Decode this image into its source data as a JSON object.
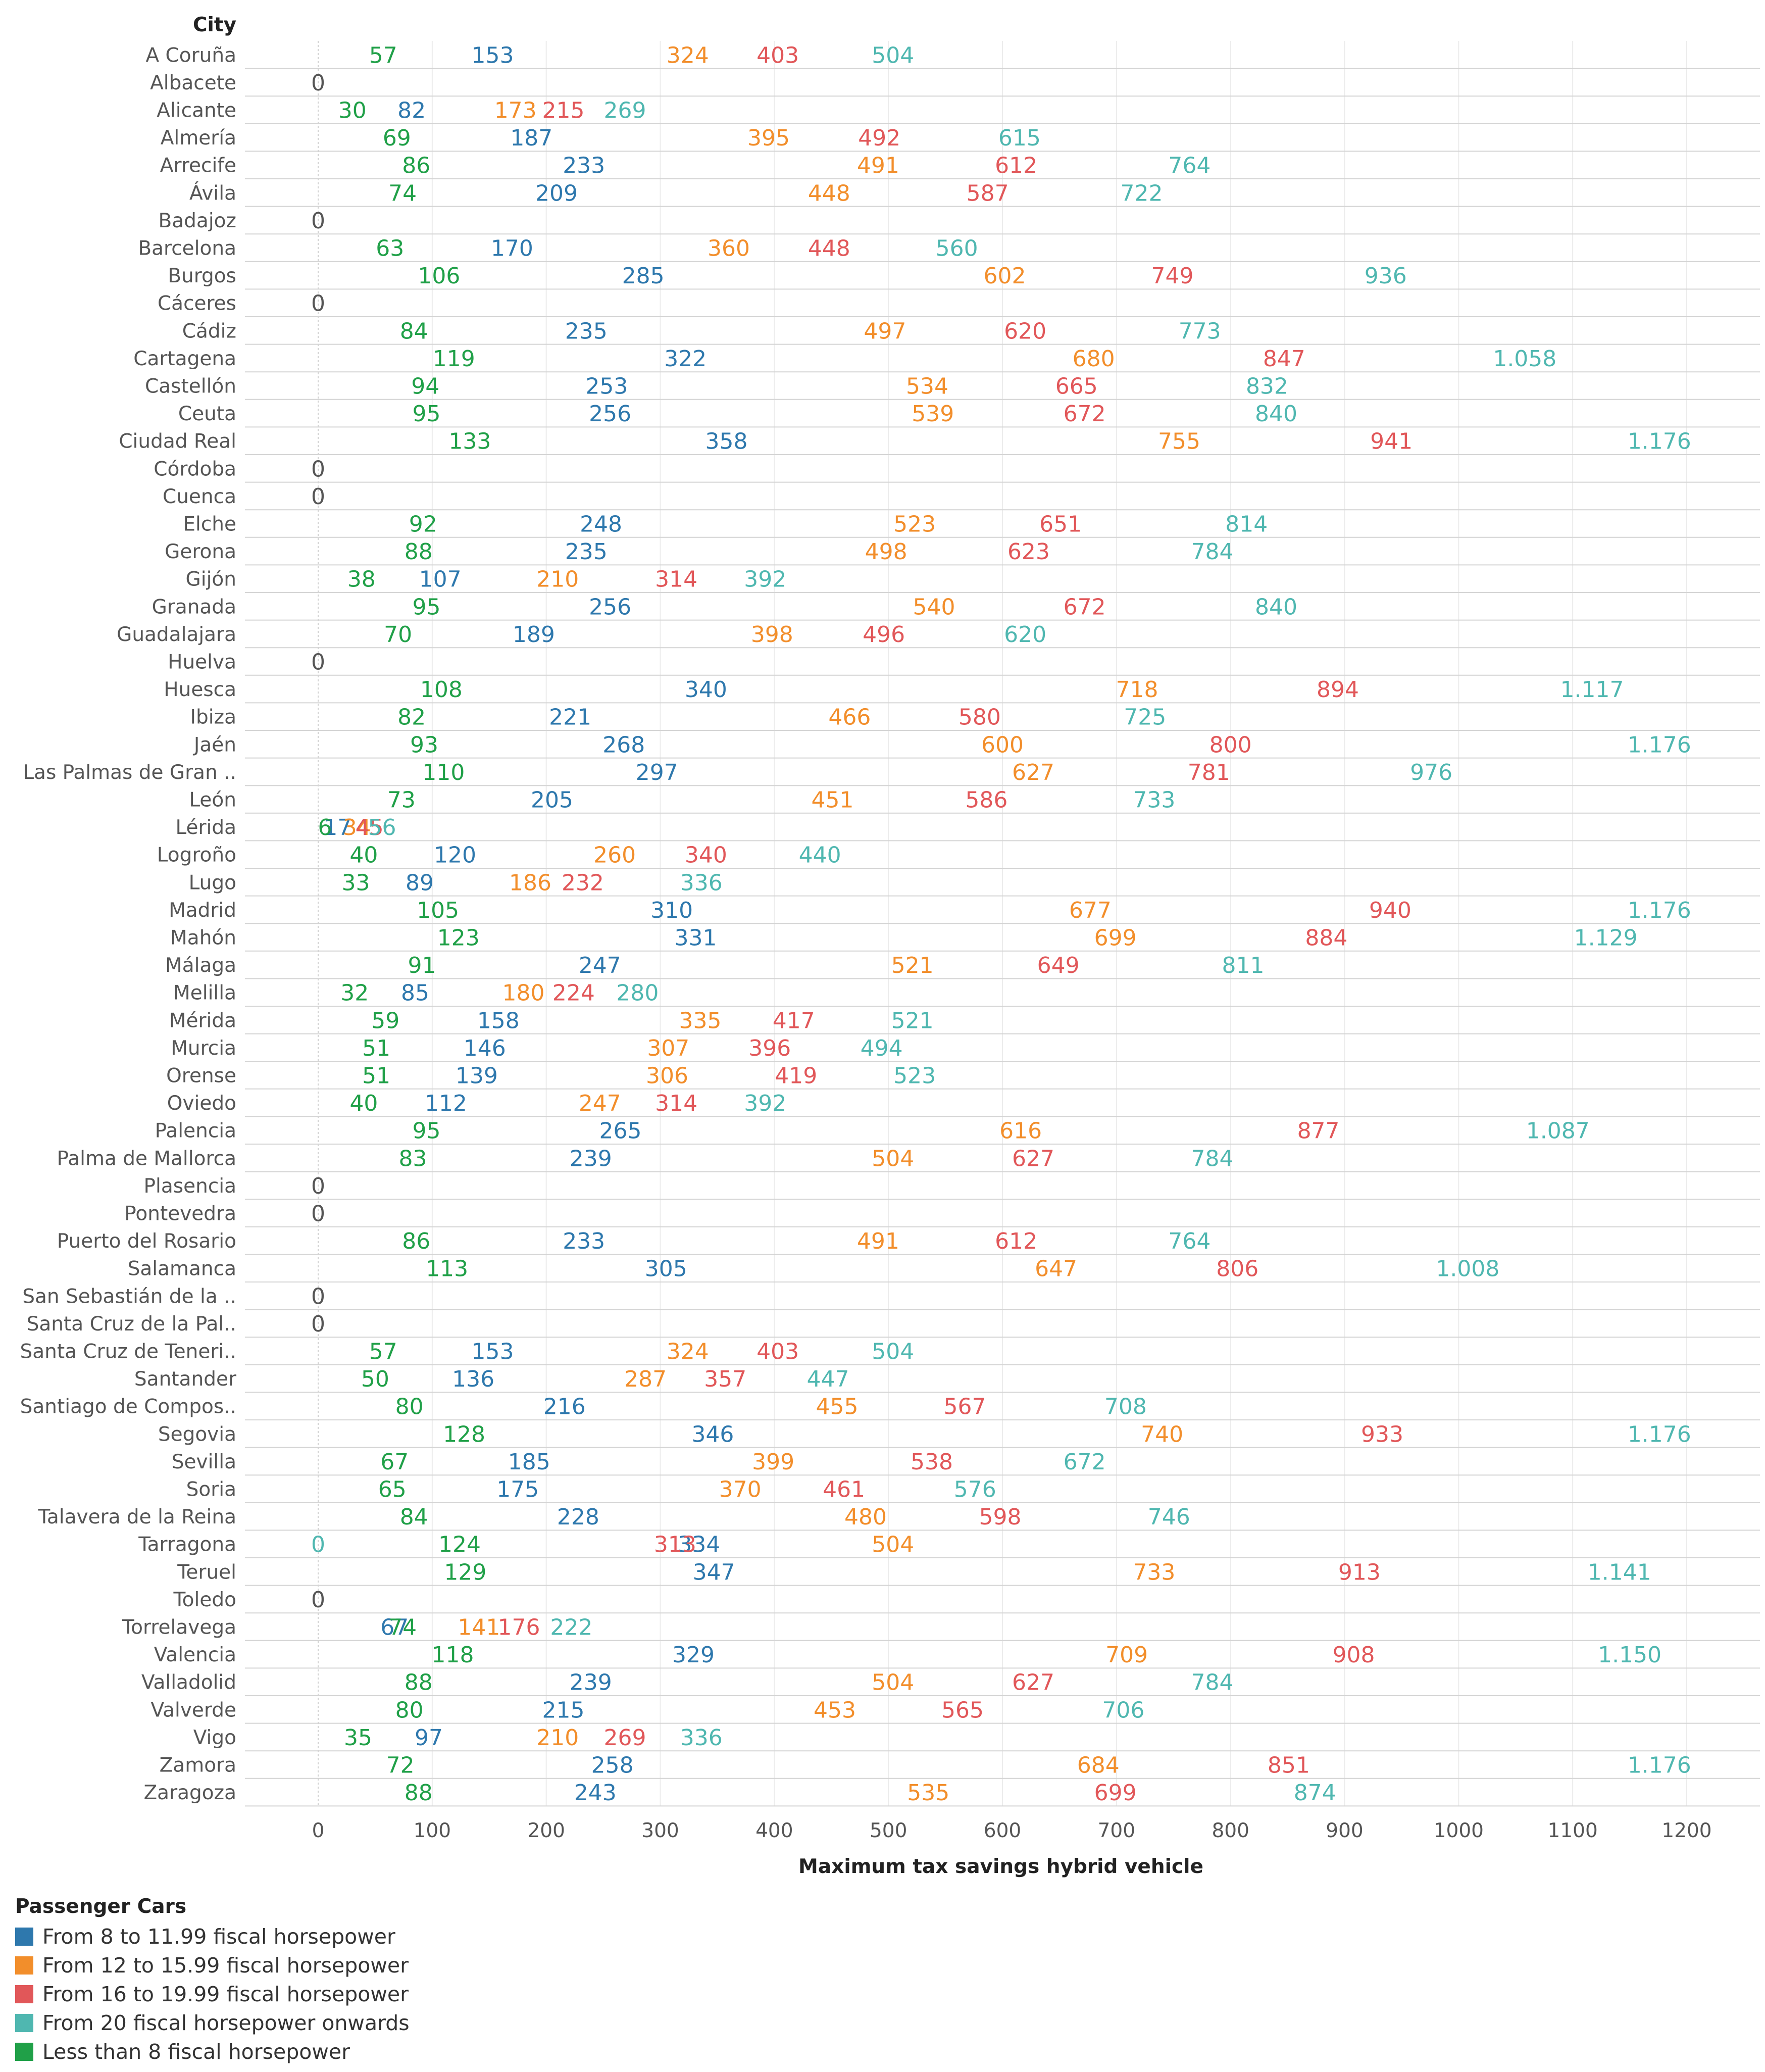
{
  "chart_data": {
    "type": "scatter",
    "row_header": "City",
    "xlabel": "Maximum tax savings hybrid vehicle",
    "xlim": [
      0,
      1200
    ],
    "x_ticks": [
      0,
      100,
      200,
      300,
      400,
      500,
      600,
      700,
      800,
      900,
      1000,
      1100,
      1200
    ],
    "legend_title": "Passenger Cars",
    "legend_placement": "bottom-left",
    "series_keys": [
      "s8",
      "s12",
      "s16",
      "s20",
      "slt8"
    ],
    "series": [
      {
        "key": "s8",
        "name": "From 8 to 11.99 fiscal horsepower",
        "color": "#2e78ad"
      },
      {
        "key": "s12",
        "name": "From 12 to 15.99 fiscal horsepower",
        "color": "#f28e2b"
      },
      {
        "key": "s16",
        "name": "From 16 to 19.99 fiscal horsepower",
        "color": "#e15759"
      },
      {
        "key": "s20",
        "name": "From 20 fiscal horsepower onwards",
        "color": "#4fb7b0"
      },
      {
        "key": "slt8",
        "name": "Less than 8 fiscal horsepower",
        "color": "#20a048"
      }
    ],
    "legend_order": [
      0,
      1,
      2,
      3,
      4
    ],
    "rows": [
      {
        "city": "A Coruña",
        "slt8": 57,
        "s8": 153,
        "s12": 324,
        "s16": 403,
        "s20": 504,
        "slt8_label": "57",
        "s8_label": "153",
        "s12_label": "324",
        "s16_label": "403",
        "s20_label": "504"
      },
      {
        "city": "Albacete",
        "zero": 0,
        "zero_label": "0"
      },
      {
        "city": "Alicante",
        "slt8": 30,
        "s8": 82,
        "s12": 173,
        "s16": 215,
        "s20": 269,
        "slt8_label": "30",
        "s8_label": "82",
        "s12_label": "173",
        "s16_label": "215",
        "s20_label": "269"
      },
      {
        "city": "Almería",
        "slt8": 69,
        "s8": 187,
        "s12": 395,
        "s16": 492,
        "s20": 615,
        "slt8_label": "69",
        "s8_label": "187",
        "s12_label": "395",
        "s16_label": "492",
        "s20_label": "615"
      },
      {
        "city": "Arrecife",
        "slt8": 86,
        "s8": 233,
        "s12": 491,
        "s16": 612,
        "s20": 764,
        "slt8_label": "86",
        "s8_label": "233",
        "s12_label": "491",
        "s16_label": "612",
        "s20_label": "764"
      },
      {
        "city": "Ávila",
        "slt8": 74,
        "s8": 209,
        "s12": 448,
        "s16": 587,
        "s20": 722,
        "slt8_label": "74",
        "s8_label": "209",
        "s12_label": "448",
        "s16_label": "587",
        "s20_label": "722"
      },
      {
        "city": "Badajoz",
        "zero": 0,
        "zero_label": "0"
      },
      {
        "city": "Barcelona",
        "slt8": 63,
        "s8": 170,
        "s12": 360,
        "s16": 448,
        "s20": 560,
        "slt8_label": "63",
        "s8_label": "170",
        "s12_label": "360",
        "s16_label": "448",
        "s20_label": "560"
      },
      {
        "city": "Burgos",
        "slt8": 106,
        "s8": 285,
        "s12": 602,
        "s16": 749,
        "s20": 936,
        "slt8_label": "106",
        "s8_label": "285",
        "s12_label": "602",
        "s16_label": "749",
        "s20_label": "936"
      },
      {
        "city": "Cáceres",
        "zero": 0,
        "zero_label": "0"
      },
      {
        "city": "Cádiz",
        "slt8": 84,
        "s8": 235,
        "s12": 497,
        "s16": 620,
        "s20": 773,
        "slt8_label": "84",
        "s8_label": "235",
        "s12_label": "497",
        "s16_label": "620",
        "s20_label": "773"
      },
      {
        "city": "Cartagena",
        "slt8": 119,
        "s8": 322,
        "s12": 680,
        "s16": 847,
        "s20": 1058,
        "slt8_label": "119",
        "s8_label": "322",
        "s12_label": "680",
        "s16_label": "847",
        "s20_label": "1.058"
      },
      {
        "city": "Castellón",
        "slt8": 94,
        "s8": 253,
        "s12": 534,
        "s16": 665,
        "s20": 832,
        "slt8_label": "94",
        "s8_label": "253",
        "s12_label": "534",
        "s16_label": "665",
        "s20_label": "832"
      },
      {
        "city": "Ceuta",
        "slt8": 95,
        "s8": 256,
        "s12": 539,
        "s16": 672,
        "s20": 840,
        "slt8_label": "95",
        "s8_label": "256",
        "s12_label": "539",
        "s16_label": "672",
        "s20_label": "840"
      },
      {
        "city": "Ciudad Real",
        "slt8": 133,
        "s8": 358,
        "s12": 755,
        "s16": 941,
        "s20": 1176,
        "slt8_label": "133",
        "s8_label": "358",
        "s12_label": "755",
        "s16_label": "941",
        "s20_label": "1.176"
      },
      {
        "city": "Córdoba",
        "zero": 0,
        "zero_label": "0"
      },
      {
        "city": "Cuenca",
        "zero": 0,
        "zero_label": "0"
      },
      {
        "city": "Elche",
        "slt8": 92,
        "s8": 248,
        "s12": 523,
        "s16": 651,
        "s20": 814,
        "slt8_label": "92",
        "s8_label": "248",
        "s12_label": "523",
        "s16_label": "651",
        "s20_label": "814"
      },
      {
        "city": "Gerona",
        "slt8": 88,
        "s8": 235,
        "s12": 498,
        "s16": 623,
        "s20": 784,
        "slt8_label": "88",
        "s8_label": "235",
        "s12_label": "498",
        "s16_label": "623",
        "s20_label": "784"
      },
      {
        "city": "Gijón",
        "slt8": 38,
        "s8": 107,
        "s12": 210,
        "s16": 314,
        "s20": 392,
        "slt8_label": "38",
        "s8_label": "107",
        "s12_label": "210",
        "s16_label": "314",
        "s20_label": "392"
      },
      {
        "city": "Granada",
        "slt8": 95,
        "s8": 256,
        "s12": 540,
        "s16": 672,
        "s20": 840,
        "slt8_label": "95",
        "s8_label": "256",
        "s12_label": "540",
        "s16_label": "672",
        "s20_label": "840"
      },
      {
        "city": "Guadalajara",
        "slt8": 70,
        "s8": 189,
        "s12": 398,
        "s16": 496,
        "s20": 620,
        "slt8_label": "70",
        "s8_label": "189",
        "s12_label": "398",
        "s16_label": "496",
        "s20_label": "620"
      },
      {
        "city": "Huelva",
        "zero": 0,
        "zero_label": "0"
      },
      {
        "city": "Huesca",
        "slt8": 108,
        "s8": 340,
        "s12": 718,
        "s16": 894,
        "s20": 1117,
        "slt8_label": "108",
        "s8_label": "340",
        "s12_label": "718",
        "s16_label": "894",
        "s20_label": "1.117"
      },
      {
        "city": "Ibiza",
        "slt8": 82,
        "s8": 221,
        "s12": 466,
        "s16": 580,
        "s20": 725,
        "slt8_label": "82",
        "s8_label": "221",
        "s12_label": "466",
        "s16_label": "580",
        "s20_label": "725"
      },
      {
        "city": "Jaén",
        "slt8": 93,
        "s8": 268,
        "s12": 600,
        "s16": 800,
        "s20": 1176,
        "slt8_label": "93",
        "s8_label": "268",
        "s12_label": "600",
        "s16_label": "800",
        "s20_label": "1.176"
      },
      {
        "city": "Las Palmas de Gran ..",
        "slt8": 110,
        "s8": 297,
        "s12": 627,
        "s16": 781,
        "s20": 976,
        "slt8_label": "110",
        "s8_label": "297",
        "s12_label": "627",
        "s16_label": "781",
        "s20_label": "976"
      },
      {
        "city": "León",
        "slt8": 73,
        "s8": 205,
        "s12": 451,
        "s16": 586,
        "s20": 733,
        "slt8_label": "73",
        "s8_label": "205",
        "s12_label": "451",
        "s16_label": "586",
        "s20_label": "733"
      },
      {
        "city": "Lérida",
        "slt8": 6,
        "s8": 17,
        "s12": 34,
        "s16": 45,
        "s20": 56,
        "slt8_label": "6",
        "s8_label": "17",
        "s12_label": "34",
        "s16_label": "45",
        "s20_label": "56"
      },
      {
        "city": "Logroño",
        "slt8": 40,
        "s8": 120,
        "s12": 260,
        "s16": 340,
        "s20": 440,
        "slt8_label": "40",
        "s8_label": "120",
        "s12_label": "260",
        "s16_label": "340",
        "s20_label": "440"
      },
      {
        "city": "Lugo",
        "slt8": 33,
        "s8": 89,
        "s12": 186,
        "s16": 232,
        "s20": 336,
        "slt8_label": "33",
        "s8_label": "89",
        "s12_label": "186",
        "s16_label": "232",
        "s20_label": "336"
      },
      {
        "city": "Madrid",
        "slt8": 105,
        "s8": 310,
        "s12": 677,
        "s16": 940,
        "s20": 1176,
        "slt8_label": "105",
        "s8_label": "310",
        "s12_label": "677",
        "s16_label": "940",
        "s20_label": "1.176"
      },
      {
        "city": "Mahón",
        "slt8": 123,
        "s8": 331,
        "s12": 699,
        "s16": 884,
        "s20": 1129,
        "slt8_label": "123",
        "s8_label": "331",
        "s12_label": "699",
        "s16_label": "884",
        "s20_label": "1.129"
      },
      {
        "city": "Málaga",
        "slt8": 91,
        "s8": 247,
        "s12": 521,
        "s16": 649,
        "s20": 811,
        "slt8_label": "91",
        "s8_label": "247",
        "s12_label": "521",
        "s16_label": "649",
        "s20_label": "811"
      },
      {
        "city": "Melilla",
        "slt8": 32,
        "s8": 85,
        "s12": 180,
        "s16": 224,
        "s20": 280,
        "slt8_label": "32",
        "s8_label": "85",
        "s12_label": "180",
        "s16_label": "224",
        "s20_label": "280"
      },
      {
        "city": "Mérida",
        "slt8": 59,
        "s8": 158,
        "s12": 335,
        "s16": 417,
        "s20": 521,
        "slt8_label": "59",
        "s8_label": "158",
        "s12_label": "335",
        "s16_label": "417",
        "s20_label": "521"
      },
      {
        "city": "Murcia",
        "slt8": 51,
        "s8": 146,
        "s12": 307,
        "s16": 396,
        "s20": 494,
        "slt8_label": "51",
        "s8_label": "146",
        "s12_label": "307",
        "s16_label": "396",
        "s20_label": "494"
      },
      {
        "city": "Orense",
        "slt8": 51,
        "s8": 139,
        "s12": 306,
        "s16": 419,
        "s20": 523,
        "slt8_label": "51",
        "s8_label": "139",
        "s12_label": "306",
        "s16_label": "419",
        "s20_label": "523"
      },
      {
        "city": "Oviedo",
        "slt8": 40,
        "s8": 112,
        "s12": 247,
        "s16": 314,
        "s20": 392,
        "slt8_label": "40",
        "s8_label": "112",
        "s12_label": "247",
        "s16_label": "314",
        "s20_label": "392"
      },
      {
        "city": "Palencia",
        "slt8": 95,
        "s8": 265,
        "s12": 616,
        "s16": 877,
        "s20": 1087,
        "slt8_label": "95",
        "s8_label": "265",
        "s12_label": "616",
        "s16_label": "877",
        "s20_label": "1.087"
      },
      {
        "city": "Palma de Mallorca",
        "slt8": 83,
        "s8": 239,
        "s12": 504,
        "s16": 627,
        "s20": 784,
        "slt8_label": "83",
        "s8_label": "239",
        "s12_label": "504",
        "s16_label": "627",
        "s20_label": "784"
      },
      {
        "city": "Plasencia",
        "zero": 0,
        "zero_label": "0"
      },
      {
        "city": "Pontevedra",
        "zero": 0,
        "zero_label": "0"
      },
      {
        "city": "Puerto del Rosario",
        "slt8": 86,
        "s8": 233,
        "s12": 491,
        "s16": 612,
        "s20": 764,
        "slt8_label": "86",
        "s8_label": "233",
        "s12_label": "491",
        "s16_label": "612",
        "s20_label": "764"
      },
      {
        "city": "Salamanca",
        "slt8": 113,
        "s8": 305,
        "s12": 647,
        "s16": 806,
        "s20": 1008,
        "slt8_label": "113",
        "s8_label": "305",
        "s12_label": "647",
        "s16_label": "806",
        "s20_label": "1.008"
      },
      {
        "city": "San Sebastián de la ..",
        "zero": 0,
        "zero_label": "0"
      },
      {
        "city": "Santa Cruz de la Pal..",
        "zero": 0,
        "zero_label": "0"
      },
      {
        "city": "Santa Cruz de Teneri..",
        "slt8": 57,
        "s8": 153,
        "s12": 324,
        "s16": 403,
        "s20": 504,
        "slt8_label": "57",
        "s8_label": "153",
        "s12_label": "324",
        "s16_label": "403",
        "s20_label": "504"
      },
      {
        "city": "Santander",
        "slt8": 50,
        "s8": 136,
        "s12": 287,
        "s16": 357,
        "s20": 447,
        "slt8_label": "50",
        "s8_label": "136",
        "s12_label": "287",
        "s16_label": "357",
        "s20_label": "447"
      },
      {
        "city": "Santiago de Compos..",
        "slt8": 80,
        "s8": 216,
        "s12": 455,
        "s16": 567,
        "s20": 708,
        "slt8_label": "80",
        "s8_label": "216",
        "s12_label": "455",
        "s16_label": "567",
        "s20_label": "708"
      },
      {
        "city": "Segovia",
        "slt8": 128,
        "s8": 346,
        "s12": 740,
        "s16": 933,
        "s20": 1176,
        "slt8_label": "128",
        "s8_label": "346",
        "s12_label": "740",
        "s16_label": "933",
        "s20_label": "1.176"
      },
      {
        "city": "Sevilla",
        "slt8": 67,
        "s8": 185,
        "s12": 399,
        "s16": 538,
        "s20": 672,
        "slt8_label": "67",
        "s8_label": "185",
        "s12_label": "399",
        "s16_label": "538",
        "s20_label": "672"
      },
      {
        "city": "Soria",
        "slt8": 65,
        "s8": 175,
        "s12": 370,
        "s16": 461,
        "s20": 576,
        "slt8_label": "65",
        "s8_label": "175",
        "s12_label": "370",
        "s16_label": "461",
        "s20_label": "576"
      },
      {
        "city": "Talavera de la Reina",
        "slt8": 84,
        "s8": 228,
        "s12": 480,
        "s16": 598,
        "s20": 746,
        "slt8_label": "84",
        "s8_label": "228",
        "s12_label": "480",
        "s16_label": "598",
        "s20_label": "746"
      },
      {
        "city": "Tarragona",
        "s20": 0,
        "slt8": 124,
        "s16": 313,
        "s8": 334,
        "s12": 504,
        "s20_label": "0",
        "slt8_label": "124",
        "s16_label": "313",
        "s8_label": "334",
        "s12_label": "504"
      },
      {
        "city": "Teruel",
        "slt8": 129,
        "s8": 347,
        "s12": 733,
        "s16": 913,
        "s20": 1141,
        "slt8_label": "129",
        "s8_label": "347",
        "s12_label": "733",
        "s16_label": "913",
        "s20_label": "1.141"
      },
      {
        "city": "Toledo",
        "zero": 0,
        "zero_label": "0"
      },
      {
        "city": "Torrelavega",
        "s8": 67,
        "slt8": 74,
        "s12": 141,
        "s16": 176,
        "s20": 222,
        "s8_label": "67",
        "slt8_label": "74",
        "s12_label": "141",
        "s16_label": "176",
        "s20_label": "222"
      },
      {
        "city": "Valencia",
        "slt8": 118,
        "s8": 329,
        "s12": 709,
        "s16": 908,
        "s20": 1150,
        "slt8_label": "118",
        "s8_label": "329",
        "s12_label": "709",
        "s16_label": "908",
        "s20_label": "1.150"
      },
      {
        "city": "Valladolid",
        "slt8": 88,
        "s8": 239,
        "s12": 504,
        "s16": 627,
        "s20": 784,
        "slt8_label": "88",
        "s8_label": "239",
        "s12_label": "504",
        "s16_label": "627",
        "s20_label": "784"
      },
      {
        "city": "Valverde",
        "slt8": 80,
        "s8": 215,
        "s12": 453,
        "s16": 565,
        "s20": 706,
        "slt8_label": "80",
        "s8_label": "215",
        "s12_label": "453",
        "s16_label": "565",
        "s20_label": "706"
      },
      {
        "city": "Vigo",
        "slt8": 35,
        "s8": 97,
        "s12": 210,
        "s16": 269,
        "s20": 336,
        "slt8_label": "35",
        "s8_label": "97",
        "s12_label": "210",
        "s16_label": "269",
        "s20_label": "336"
      },
      {
        "city": "Zamora",
        "slt8": 72,
        "s8": 258,
        "s12": 684,
        "s16": 851,
        "s20": 1176,
        "slt8_label": "72",
        "s8_label": "258",
        "s12_label": "684",
        "s16_label": "851",
        "s20_label": "1.176"
      },
      {
        "city": "Zaragoza",
        "slt8": 88,
        "s8": 243,
        "s12": 535,
        "s16": 699,
        "s20": 874,
        "slt8_label": "88",
        "s8_label": "243",
        "s12_label": "535",
        "s16_label": "699",
        "s20_label": "874"
      }
    ],
    "zero_color": "#555555",
    "grid": true
  }
}
